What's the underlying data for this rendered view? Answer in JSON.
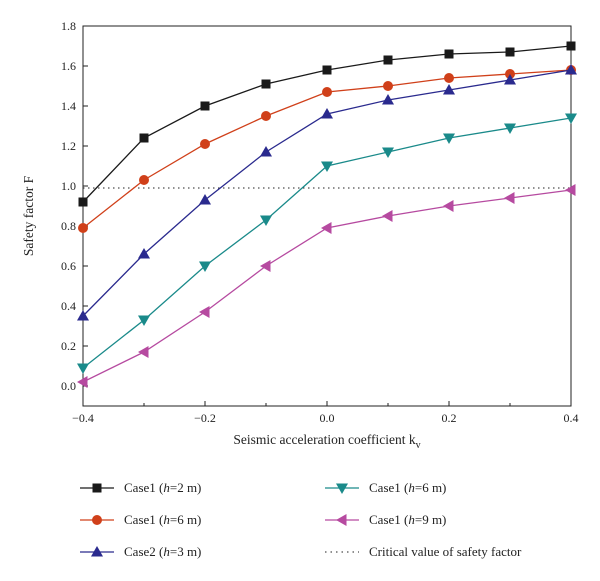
{
  "chart_data": {
    "type": "line",
    "xlabel": "Seismic acceleration coefficient k",
    "xlabel_sub": "v",
    "ylabel": "Safety factor F",
    "xlim": [
      -0.4,
      0.4
    ],
    "ylim": [
      -0.1,
      1.8
    ],
    "x_ticks": [
      "-0.4",
      "-0.2",
      "0.0",
      "0.2",
      "0.4"
    ],
    "x_tick_values": [
      -0.4,
      -0.2,
      0.0,
      0.2,
      0.4
    ],
    "y_ticks": [
      "0.0",
      "0.2",
      "0.4",
      "0.6",
      "0.8",
      "1.0",
      "1.2",
      "1.4",
      "1.6",
      "1.8"
    ],
    "y_tick_values": [
      0.0,
      0.2,
      0.4,
      0.6,
      0.8,
      1.0,
      1.2,
      1.4,
      1.6,
      1.8
    ],
    "x": [
      -0.4,
      -0.3,
      -0.2,
      -0.1,
      0.0,
      0.1,
      0.2,
      0.3,
      0.4
    ],
    "series": [
      {
        "name": "Case1 (h=2 m)",
        "label_prefix": "Case1 (",
        "label_var": "h",
        "label_suffix": "=2 m)",
        "marker": "square",
        "color": "#1a1a1a",
        "values": [
          0.92,
          1.24,
          1.4,
          1.51,
          1.58,
          1.63,
          1.66,
          1.67,
          1.7
        ]
      },
      {
        "name": "Case1 (h=6 m)",
        "label_prefix": "Case1 (",
        "label_var": "h",
        "label_suffix": "=6 m)",
        "marker": "circle",
        "color": "#d0401a",
        "values": [
          0.79,
          1.03,
          1.21,
          1.35,
          1.47,
          1.5,
          1.54,
          1.56,
          1.58
        ]
      },
      {
        "name": "Case2 (h=3 m)",
        "label_prefix": "Case2 (",
        "label_var": "h",
        "label_suffix": "=3 m)",
        "marker": "triangle-up",
        "color": "#2a2a8e",
        "values": [
          0.35,
          0.66,
          0.93,
          1.17,
          1.36,
          1.43,
          1.48,
          1.53,
          1.58
        ]
      },
      {
        "name": "Case1 (h=6 m)",
        "label_prefix": "Case1 (",
        "label_var": "h",
        "label_suffix": "=6 m)",
        "marker": "triangle-down",
        "color": "#1a8a8a",
        "values": [
          0.09,
          0.33,
          0.6,
          0.83,
          1.1,
          1.17,
          1.24,
          1.29,
          1.34
        ]
      },
      {
        "name": "Case1 (h=9 m)",
        "label_prefix": "Case1 (",
        "label_var": "h",
        "label_suffix": "=9 m)",
        "marker": "triangle-left",
        "color": "#b64aa0",
        "values": [
          0.02,
          0.17,
          0.37,
          0.6,
          0.79,
          0.85,
          0.9,
          0.94,
          0.98
        ]
      }
    ],
    "reference_line": {
      "name": "Critical value of safety factor",
      "y": 0.99,
      "style": "dotted",
      "color": "#222222"
    },
    "grid": false,
    "legend_position": "bottom"
  }
}
